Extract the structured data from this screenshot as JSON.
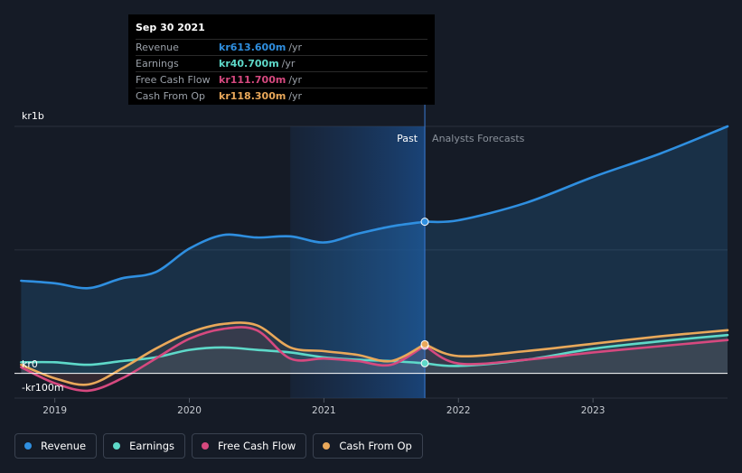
{
  "tooltip": {
    "date": "Sep 30 2021",
    "rows": [
      {
        "label": "Revenue",
        "value": "kr613.600m",
        "unit": "/yr",
        "color": "#2f8fe0"
      },
      {
        "label": "Earnings",
        "value": "kr40.700m",
        "unit": "/yr",
        "color": "#5ed9c9"
      },
      {
        "label": "Free Cash Flow",
        "value": "kr111.700m",
        "unit": "/yr",
        "color": "#d6497f"
      },
      {
        "label": "Cash From Op",
        "value": "kr118.300m",
        "unit": "/yr",
        "color": "#e9a85a"
      }
    ]
  },
  "chart_data": {
    "type": "area",
    "y_unit": "kr millions",
    "ylim": [
      -100,
      1000
    ],
    "y_tick_labels": [
      "kr1b",
      "kr0",
      "-kr100m"
    ],
    "x_tick_labels": [
      "2019",
      "2020",
      "2021",
      "2022",
      "2023"
    ],
    "xlim": [
      2018.7,
      2024.0
    ],
    "divider_x": 2021.75,
    "region_labels": {
      "past": "Past",
      "forecast": "Analysts Forecasts"
    },
    "legend_placement": "bottom",
    "grid": true,
    "series": [
      {
        "name": "Revenue",
        "color": "#2f8fe0",
        "area": true,
        "points": [
          [
            2018.75,
            375
          ],
          [
            2019.0,
            365
          ],
          [
            2019.25,
            345
          ],
          [
            2019.5,
            385
          ],
          [
            2019.75,
            410
          ],
          [
            2020.0,
            505
          ],
          [
            2020.25,
            560
          ],
          [
            2020.5,
            550
          ],
          [
            2020.75,
            555
          ],
          [
            2021.0,
            530
          ],
          [
            2021.25,
            565
          ],
          [
            2021.5,
            595
          ],
          [
            2021.75,
            614
          ]
        ],
        "forecast": [
          [
            2021.75,
            614
          ],
          [
            2022.0,
            620
          ],
          [
            2022.5,
            690
          ],
          [
            2023.0,
            795
          ],
          [
            2023.5,
            890
          ],
          [
            2024.0,
            1000
          ]
        ]
      },
      {
        "name": "Earnings",
        "color": "#5ed9c9",
        "area": false,
        "points": [
          [
            2018.75,
            45
          ],
          [
            2019.0,
            45
          ],
          [
            2019.25,
            35
          ],
          [
            2019.5,
            50
          ],
          [
            2019.75,
            65
          ],
          [
            2020.0,
            95
          ],
          [
            2020.25,
            105
          ],
          [
            2020.5,
            95
          ],
          [
            2020.75,
            85
          ],
          [
            2021.0,
            65
          ],
          [
            2021.25,
            55
          ],
          [
            2021.5,
            50
          ],
          [
            2021.75,
            41
          ]
        ],
        "forecast": [
          [
            2021.75,
            41
          ],
          [
            2022.0,
            30
          ],
          [
            2022.5,
            55
          ],
          [
            2023.0,
            100
          ],
          [
            2023.5,
            130
          ],
          [
            2024.0,
            155
          ]
        ]
      },
      {
        "name": "Free Cash Flow",
        "color": "#d6497f",
        "area": false,
        "points": [
          [
            2018.75,
            25
          ],
          [
            2019.0,
            -40
          ],
          [
            2019.25,
            -70
          ],
          [
            2019.5,
            -20
          ],
          [
            2019.75,
            60
          ],
          [
            2020.0,
            140
          ],
          [
            2020.25,
            180
          ],
          [
            2020.5,
            175
          ],
          [
            2020.75,
            60
          ],
          [
            2021.0,
            60
          ],
          [
            2021.25,
            50
          ],
          [
            2021.5,
            35
          ],
          [
            2021.75,
            112
          ]
        ],
        "forecast": [
          [
            2021.75,
            112
          ],
          [
            2022.0,
            40
          ],
          [
            2022.5,
            55
          ],
          [
            2023.0,
            85
          ],
          [
            2023.5,
            110
          ],
          [
            2024.0,
            135
          ]
        ]
      },
      {
        "name": "Cash From Op",
        "color": "#e9a85a",
        "area": false,
        "points": [
          [
            2018.75,
            35
          ],
          [
            2019.0,
            -20
          ],
          [
            2019.25,
            -45
          ],
          [
            2019.5,
            20
          ],
          [
            2019.75,
            100
          ],
          [
            2020.0,
            165
          ],
          [
            2020.25,
            200
          ],
          [
            2020.5,
            195
          ],
          [
            2020.75,
            105
          ],
          [
            2021.0,
            90
          ],
          [
            2021.25,
            75
          ],
          [
            2021.5,
            50
          ],
          [
            2021.75,
            118
          ]
        ],
        "forecast": [
          [
            2021.75,
            118
          ],
          [
            2022.0,
            70
          ],
          [
            2022.5,
            90
          ],
          [
            2023.0,
            120
          ],
          [
            2023.5,
            150
          ],
          [
            2024.0,
            175
          ]
        ]
      }
    ]
  }
}
